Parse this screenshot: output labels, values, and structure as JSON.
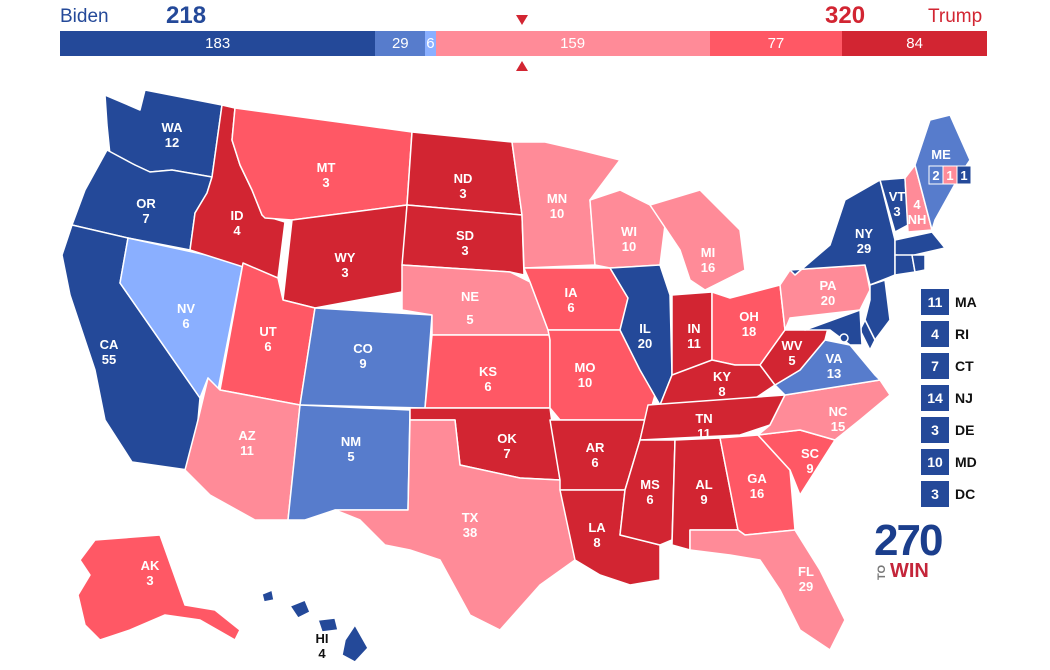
{
  "header": {
    "dem_name": "Biden",
    "dem_total": "218",
    "rep_name": "Trump",
    "rep_total": "320"
  },
  "colors": {
    "safe_d": "#244999",
    "likely_d": "#577ccc",
    "lean_d": "#8aafff",
    "lean_r": "#ff8b98",
    "likely_r": "#ff5865",
    "safe_r": "#d22532"
  },
  "bar": [
    {
      "label": "183",
      "value": 183,
      "rating": "safe_d"
    },
    {
      "label": "29",
      "value": 29,
      "rating": "likely_d"
    },
    {
      "label": "6",
      "value": 6,
      "rating": "lean_d"
    },
    {
      "label": "159",
      "value": 159,
      "rating": "lean_r"
    },
    {
      "label": "77",
      "value": 77,
      "rating": "likely_r"
    },
    {
      "label": "84",
      "value": 84,
      "rating": "safe_r"
    }
  ],
  "states": {
    "WA": {
      "abbr": "WA",
      "ev": "12",
      "rating": "safe_d"
    },
    "OR": {
      "abbr": "OR",
      "ev": "7",
      "rating": "safe_d"
    },
    "CA": {
      "abbr": "CA",
      "ev": "55",
      "rating": "safe_d"
    },
    "NV": {
      "abbr": "NV",
      "ev": "6",
      "rating": "lean_d"
    },
    "ID": {
      "abbr": "ID",
      "ev": "4",
      "rating": "safe_r"
    },
    "MT": {
      "abbr": "MT",
      "ev": "3",
      "rating": "likely_r"
    },
    "WY": {
      "abbr": "WY",
      "ev": "3",
      "rating": "safe_r"
    },
    "UT": {
      "abbr": "UT",
      "ev": "6",
      "rating": "likely_r"
    },
    "AZ": {
      "abbr": "AZ",
      "ev": "11",
      "rating": "lean_r"
    },
    "CO": {
      "abbr": "CO",
      "ev": "9",
      "rating": "likely_d"
    },
    "NM": {
      "abbr": "NM",
      "ev": "5",
      "rating": "likely_d"
    },
    "ND": {
      "abbr": "ND",
      "ev": "3",
      "rating": "safe_r"
    },
    "SD": {
      "abbr": "SD",
      "ev": "3",
      "rating": "safe_r"
    },
    "NE": {
      "abbr": "NE",
      "ev": "5",
      "rating": "lean_r"
    },
    "KS": {
      "abbr": "KS",
      "ev": "6",
      "rating": "likely_r"
    },
    "OK": {
      "abbr": "OK",
      "ev": "7",
      "rating": "safe_r"
    },
    "TX": {
      "abbr": "TX",
      "ev": "38",
      "rating": "lean_r"
    },
    "MN": {
      "abbr": "MN",
      "ev": "10",
      "rating": "lean_r"
    },
    "IA": {
      "abbr": "IA",
      "ev": "6",
      "rating": "likely_r"
    },
    "MO": {
      "abbr": "MO",
      "ev": "10",
      "rating": "likely_r"
    },
    "AR": {
      "abbr": "AR",
      "ev": "6",
      "rating": "safe_r"
    },
    "LA": {
      "abbr": "LA",
      "ev": "8",
      "rating": "safe_r"
    },
    "WI": {
      "abbr": "WI",
      "ev": "10",
      "rating": "lean_r"
    },
    "IL": {
      "abbr": "IL",
      "ev": "20",
      "rating": "safe_d"
    },
    "MI": {
      "abbr": "MI",
      "ev": "16",
      "rating": "lean_r"
    },
    "IN": {
      "abbr": "IN",
      "ev": "11",
      "rating": "safe_r"
    },
    "OH": {
      "abbr": "OH",
      "ev": "18",
      "rating": "likely_r"
    },
    "KY": {
      "abbr": "KY",
      "ev": "8",
      "rating": "safe_r"
    },
    "TN": {
      "abbr": "TN",
      "ev": "11",
      "rating": "safe_r"
    },
    "MS": {
      "abbr": "MS",
      "ev": "6",
      "rating": "safe_r"
    },
    "AL": {
      "abbr": "AL",
      "ev": "9",
      "rating": "safe_r"
    },
    "GA": {
      "abbr": "GA",
      "ev": "16",
      "rating": "likely_r"
    },
    "FL": {
      "abbr": "FL",
      "ev": "29",
      "rating": "lean_r"
    },
    "SC": {
      "abbr": "SC",
      "ev": "9",
      "rating": "likely_r"
    },
    "NC": {
      "abbr": "NC",
      "ev": "15",
      "rating": "lean_r"
    },
    "VA": {
      "abbr": "VA",
      "ev": "13",
      "rating": "likely_d"
    },
    "WV": {
      "abbr": "WV",
      "ev": "5",
      "rating": "safe_r"
    },
    "PA": {
      "abbr": "PA",
      "ev": "20",
      "rating": "lean_r"
    },
    "NY": {
      "abbr": "NY",
      "ev": "29",
      "rating": "safe_d"
    },
    "VT": {
      "abbr": "VT",
      "ev": "3",
      "rating": "safe_d"
    },
    "NH": {
      "abbr": "NH",
      "ev": "4",
      "rating": "lean_r"
    },
    "ME": {
      "abbr": "ME",
      "ev": "",
      "rating": "likely_d"
    },
    "AK": {
      "abbr": "AK",
      "ev": "3",
      "rating": "likely_r"
    },
    "HI": {
      "abbr": "HI",
      "ev": "4",
      "rating": "safe_d"
    },
    "MA": {
      "abbr": "MA",
      "ev": "11",
      "rating": "safe_d"
    },
    "RI": {
      "abbr": "RI",
      "ev": "4",
      "rating": "safe_d"
    },
    "CT": {
      "abbr": "CT",
      "ev": "7",
      "rating": "safe_d"
    },
    "NJ": {
      "abbr": "NJ",
      "ev": "14",
      "rating": "safe_d"
    },
    "DE": {
      "abbr": "DE",
      "ev": "3",
      "rating": "safe_d"
    },
    "MD": {
      "abbr": "MD",
      "ev": "10",
      "rating": "safe_d"
    },
    "DC": {
      "abbr": "DC",
      "ev": "3",
      "rating": "safe_d"
    }
  },
  "maine_districts": [
    {
      "label": "2",
      "rating": "likely_d"
    },
    {
      "label": "1",
      "rating": "lean_r"
    },
    {
      "label": "1",
      "rating": "safe_d"
    }
  ],
  "small_states": [
    {
      "abbr": "MA",
      "ev": "11"
    },
    {
      "abbr": "RI",
      "ev": "4"
    },
    {
      "abbr": "CT",
      "ev": "7"
    },
    {
      "abbr": "NJ",
      "ev": "14"
    },
    {
      "abbr": "DE",
      "ev": "3"
    },
    {
      "abbr": "MD",
      "ev": "10"
    },
    {
      "abbr": "DC",
      "ev": "3"
    }
  ],
  "logo": {
    "number": "270",
    "to": "TO",
    "win": "WIN"
  }
}
